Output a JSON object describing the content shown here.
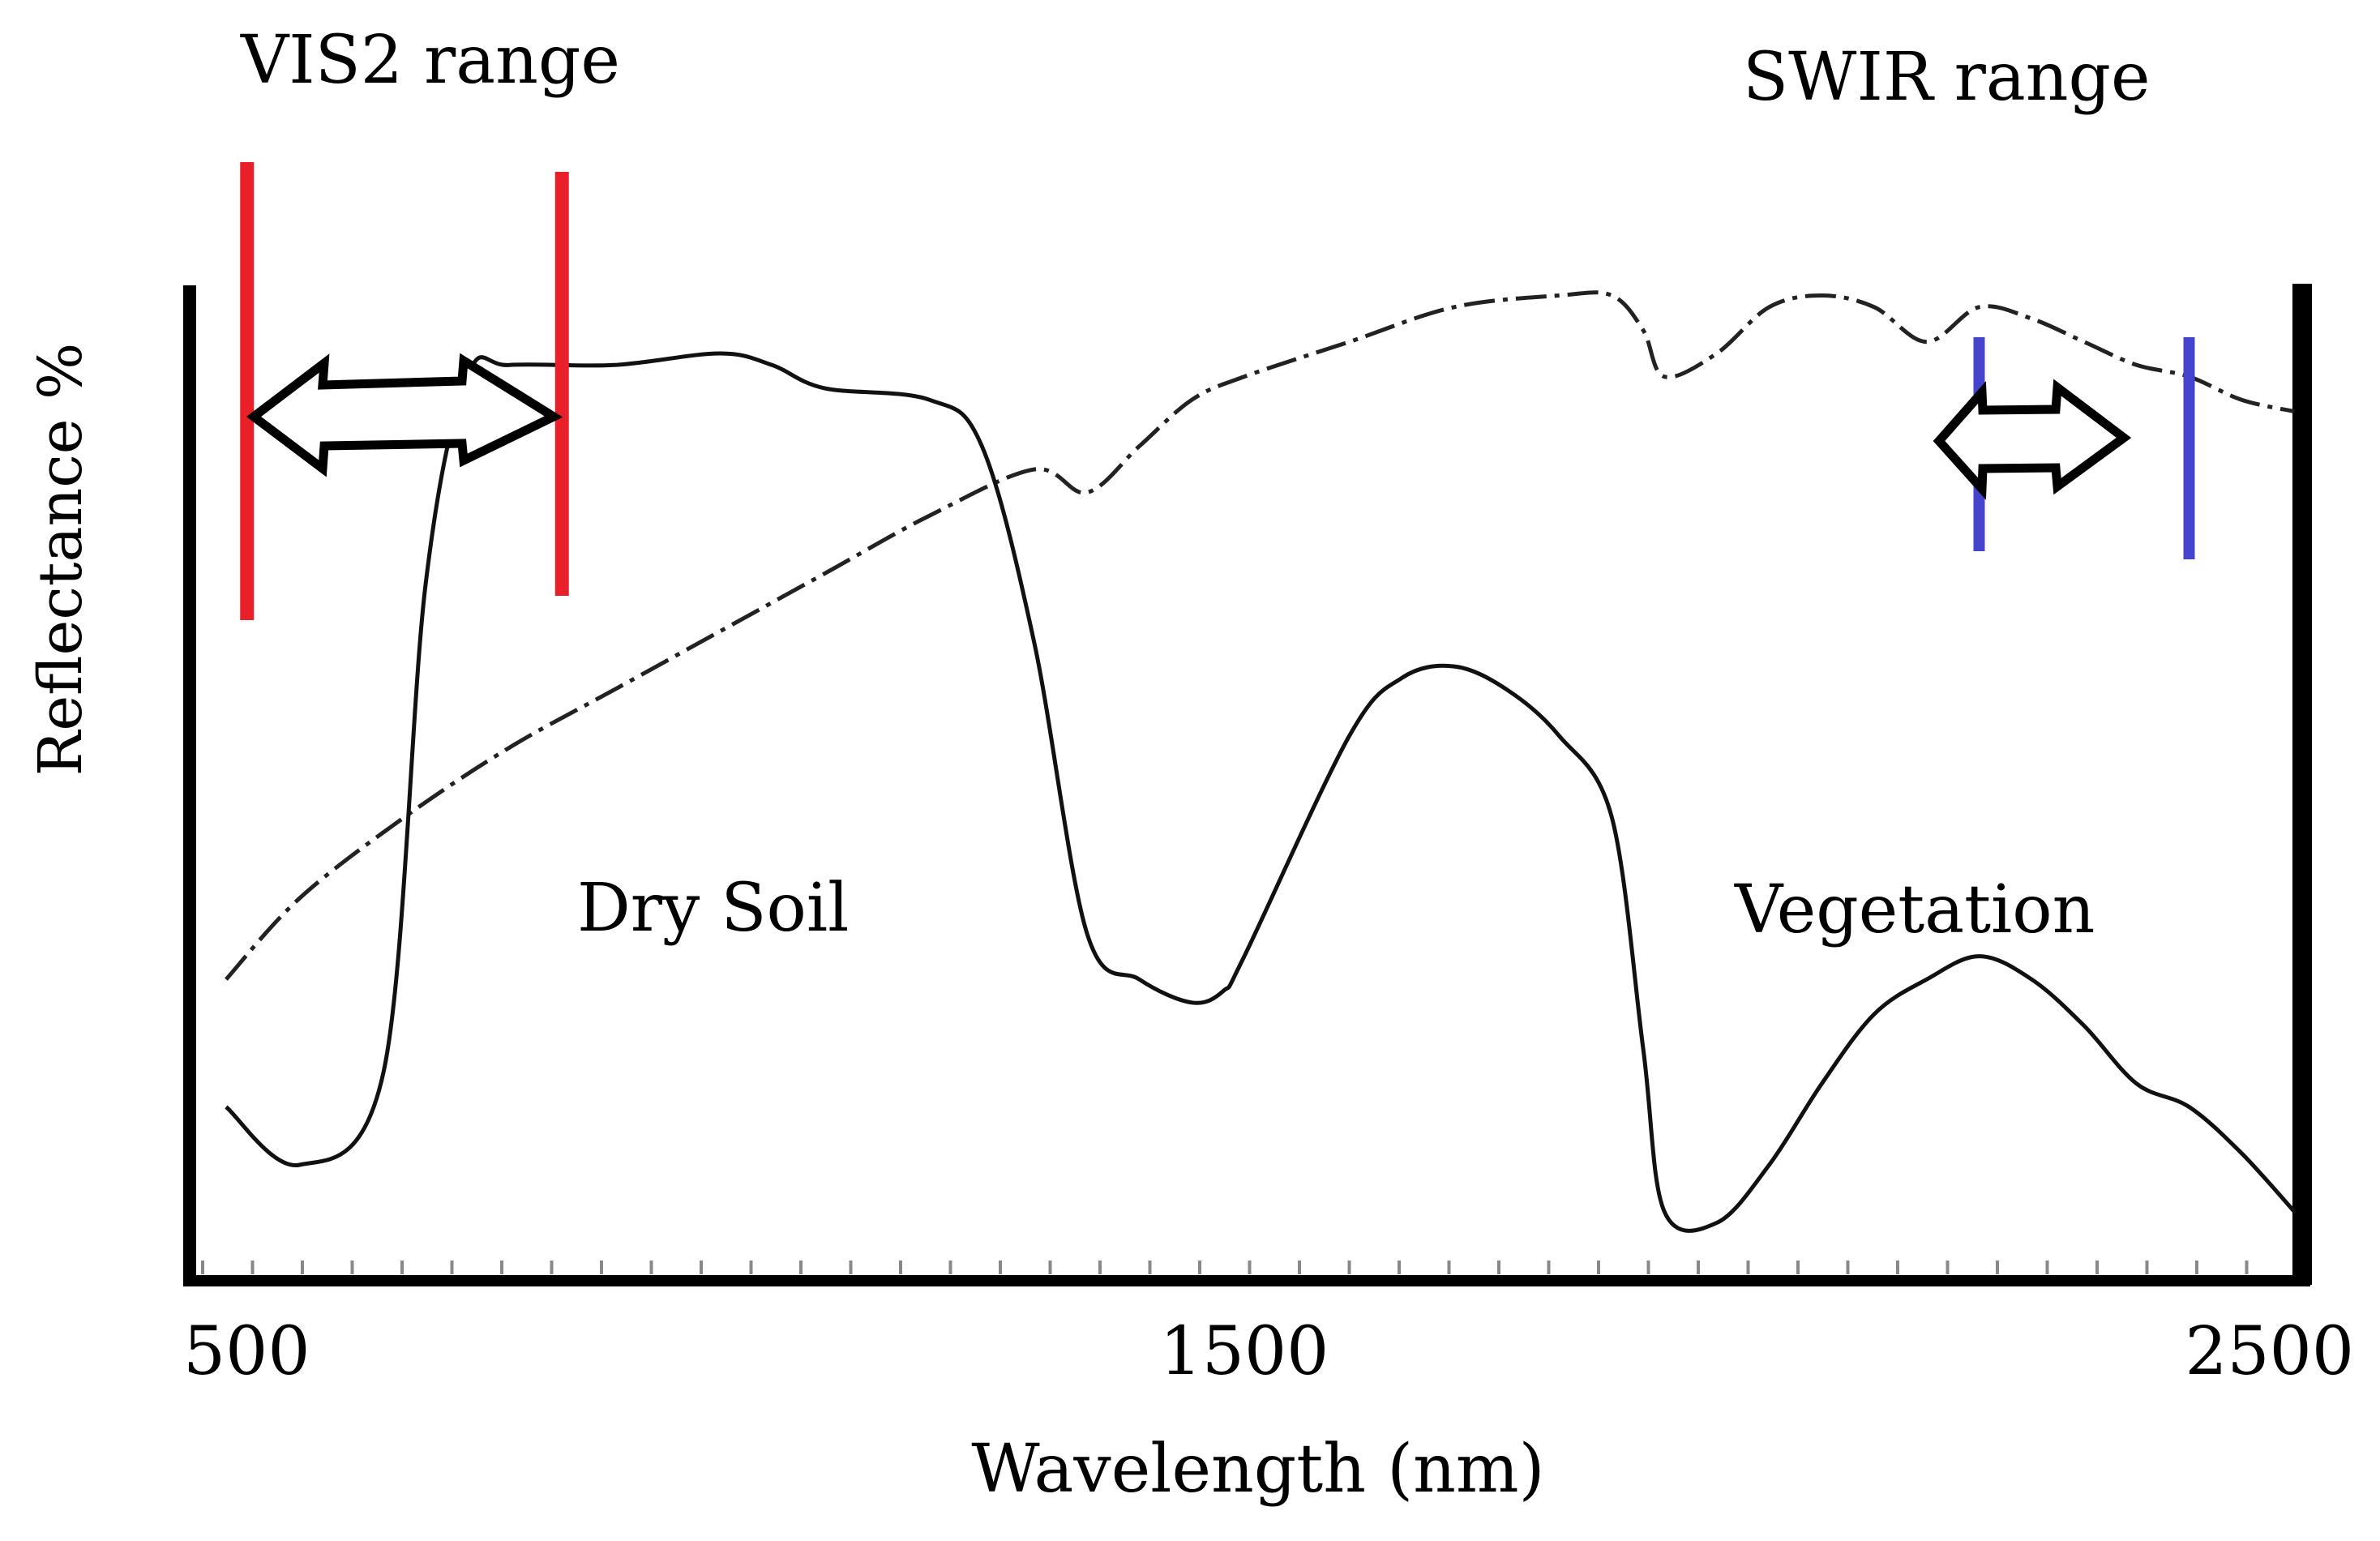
{
  "chart_data": {
    "type": "line",
    "xlabel": "Wavelength (nm)",
    "ylabel": "Reflectance %",
    "xlim": [
      500,
      2500
    ],
    "ylim": [
      0,
      100
    ],
    "x_tick_labels": [
      "500",
      "1500",
      "2500"
    ],
    "x_ticks": [
      500,
      1500,
      2500
    ],
    "grid": false,
    "series": [
      {
        "name": "Dry Soil",
        "style": "dash-dot",
        "x": [
          530,
          600,
          700,
          800,
          900,
          1000,
          1100,
          1200,
          1300,
          1350,
          1400,
          1450,
          1500,
          1600,
          1700,
          1800,
          1850,
          1880,
          1900,
          1950,
          2000,
          2050,
          2100,
          2150,
          2200,
          2250,
          2300,
          2350,
          2400,
          2450,
          2500
        ],
        "values": [
          26,
          33,
          40,
          46,
          51,
          56,
          61,
          66,
          70,
          68,
          72,
          76,
          78,
          81,
          84,
          85,
          85,
          82,
          78,
          80,
          84,
          85,
          84,
          81,
          84,
          83,
          81,
          79,
          78,
          76,
          75
        ]
      },
      {
        "name": "Vegetation",
        "style": "solid",
        "x": [
          530,
          600,
          680,
          720,
          760,
          800,
          900,
          1000,
          1050,
          1100,
          1200,
          1250,
          1300,
          1350,
          1400,
          1450,
          1480,
          1500,
          1600,
          1650,
          1700,
          1750,
          1800,
          1850,
          1880,
          1900,
          1950,
          2000,
          2050,
          2100,
          2150,
          2200,
          2250,
          2300,
          2350,
          2400,
          2450,
          2500
        ],
        "values": [
          15,
          10,
          18,
          60,
          78,
          79,
          79,
          80,
          79,
          77,
          76,
          72,
          55,
          30,
          26,
          24,
          25,
          28,
          47,
          52,
          53,
          51,
          47,
          40,
          20,
          6,
          5,
          10,
          17,
          23,
          26,
          28,
          26,
          22,
          17,
          15,
          11,
          6
        ]
      }
    ],
    "annotations": [
      {
        "text": "VIS2 range",
        "x_range": [
          550,
          850
        ],
        "color": "#e8202a"
      },
      {
        "text": "SWIR range",
        "x_range": [
          2200,
          2400
        ],
        "color": "#4444cc"
      },
      {
        "text": "Dry Soil"
      },
      {
        "text": "Vegetation"
      }
    ]
  }
}
